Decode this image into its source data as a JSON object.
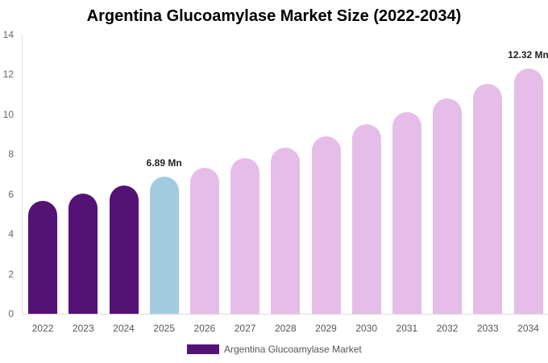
{
  "chart_data": {
    "type": "bar",
    "title": "Argentina Glucoamylase Market Size (2022-2034)",
    "xlabel": "",
    "ylabel": "",
    "ylim": [
      0,
      14
    ],
    "yticks": [
      0,
      2,
      4,
      6,
      8,
      10,
      12,
      14
    ],
    "grid": false,
    "legend_position": "bottom",
    "categories": [
      "2022",
      "2023",
      "2024",
      "2025",
      "2026",
      "2027",
      "2028",
      "2029",
      "2030",
      "2031",
      "2032",
      "2033",
      "2034"
    ],
    "series": [
      {
        "name": "Argentina Glucoamylase Market",
        "values": [
          5.67,
          6.03,
          6.43,
          6.89,
          7.32,
          7.81,
          8.34,
          8.9,
          9.51,
          10.12,
          10.81,
          11.54,
          12.32
        ]
      }
    ],
    "bar_colors": [
      "#531274",
      "#531274",
      "#531274",
      "#a3cbe0",
      "#e6bde8",
      "#e6bde8",
      "#e6bde8",
      "#e6bde8",
      "#e6bde8",
      "#e6bde8",
      "#e6bde8",
      "#e6bde8",
      "#e6bde8"
    ],
    "annotations": [
      {
        "category": "2025",
        "text": "6.89 Mn"
      },
      {
        "category": "2034",
        "text": "12.32 Mn"
      }
    ]
  },
  "legend": {
    "label": "Argentina Glucoamylase Market",
    "color": "#531274"
  }
}
